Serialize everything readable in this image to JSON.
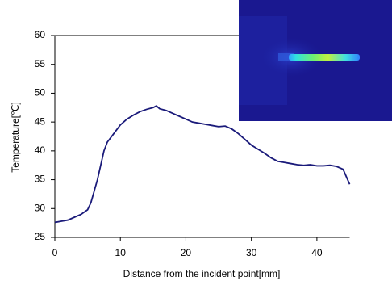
{
  "chart_data": {
    "type": "line",
    "x_label": "Distance from the incident point[mm]",
    "y_label": "Temperature[℃]",
    "x": [
      0,
      1,
      2,
      3,
      4,
      5,
      5.5,
      6,
      6.5,
      7,
      7.5,
      8,
      9,
      10,
      11,
      12,
      13,
      14,
      15,
      15.5,
      16,
      17,
      18,
      19,
      20,
      21,
      22,
      23,
      24,
      25,
      26,
      27,
      28,
      29,
      30,
      31,
      32,
      33,
      34,
      35,
      36,
      37,
      38,
      39,
      40,
      41,
      42,
      43,
      44,
      44.5,
      45
    ],
    "series": [
      {
        "color": "#1a1a7a",
        "values": [
          27.6,
          27.8,
          28.0,
          28.5,
          29.0,
          29.8,
          31.0,
          33.0,
          35.0,
          37.5,
          40.0,
          41.5,
          43.0,
          44.5,
          45.5,
          46.2,
          46.8,
          47.2,
          47.5,
          47.8,
          47.3,
          47.0,
          46.5,
          46.0,
          45.5,
          45.0,
          44.8,
          44.6,
          44.4,
          44.2,
          44.3,
          43.8,
          43.0,
          42.0,
          41.0,
          40.3,
          39.6,
          38.8,
          38.2,
          38.0,
          37.8,
          37.6,
          37.5,
          37.6,
          37.4,
          37.4,
          37.5,
          37.3,
          36.8,
          35.5,
          34.2
        ]
      }
    ],
    "xlim": [
      0,
      45
    ],
    "xticks": [
      0,
      10,
      20,
      30,
      40
    ],
    "ylim": [
      25,
      60
    ],
    "yticks": [
      25,
      30,
      35,
      40,
      45,
      50,
      55,
      60
    ]
  }
}
